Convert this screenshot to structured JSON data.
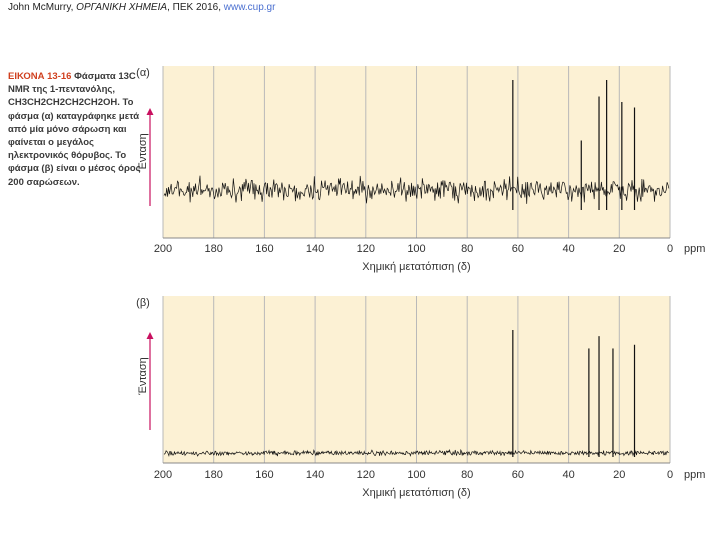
{
  "header": {
    "authors": "John McMurry, ",
    "book": "ΟΡΓΑΝΙΚΗ ΧΗΜΕΙΑ",
    "publisher": ", ΠΕΚ 2016, ",
    "url": "www.cup.gr"
  },
  "caption": {
    "figure_label": "ΕΙΚΟΝΑ 13-16",
    "text": "Φάσματα 13C NMR της 1-πεντανόλης, CH3CH2CH2CH2CH2OH. Το φάσμα (α) καταγράφηκε μετά από μία μόνο σάρωση και φαίνεται ο μεγάλος ηλεκτρονικός θόρυβος. Το φάσμα (β) είναι ο μέσος όρος 200 σαρώσεων."
  },
  "colors": {
    "plot_background": "#fcf1d4",
    "gridline": "#b9b9b9",
    "trace": "#111111",
    "intensity_arrow": "#c8105f",
    "figure_label": "#d0401f"
  },
  "chart_data": [
    {
      "type": "line",
      "panel_label": "(α)",
      "xlabel": "Χημική μετατόπιση (δ)",
      "ylabel": "Ένταση",
      "x_unit_label": "ppm",
      "xlim": [
        200,
        0
      ],
      "x_reversed": true,
      "x_ticks": [
        200,
        180,
        160,
        140,
        120,
        100,
        80,
        60,
        40,
        20,
        0
      ],
      "grid": true,
      "noise": "high",
      "peaks": [
        {
          "x": 62.0,
          "height": 1.0
        },
        {
          "x": 35.0,
          "height": 0.45
        },
        {
          "x": 28.0,
          "height": 0.85
        },
        {
          "x": 25.0,
          "height": 1.0
        },
        {
          "x": 19.0,
          "height": 0.8
        },
        {
          "x": 14.0,
          "height": 0.75
        }
      ]
    },
    {
      "type": "line",
      "panel_label": "(β)",
      "xlabel": "Χημική μετατόπιση (δ)",
      "ylabel": "Ένταση",
      "x_unit_label": "ppm",
      "xlim": [
        200,
        0
      ],
      "x_reversed": true,
      "x_ticks": [
        200,
        180,
        160,
        140,
        120,
        100,
        80,
        60,
        40,
        20,
        0
      ],
      "grid": true,
      "noise": "low",
      "peaks": [
        {
          "x": 62.0,
          "height": 1.0
        },
        {
          "x": 32.0,
          "height": 0.85
        },
        {
          "x": 28.0,
          "height": 0.95
        },
        {
          "x": 22.5,
          "height": 0.85
        },
        {
          "x": 14.0,
          "height": 0.88
        }
      ]
    }
  ]
}
